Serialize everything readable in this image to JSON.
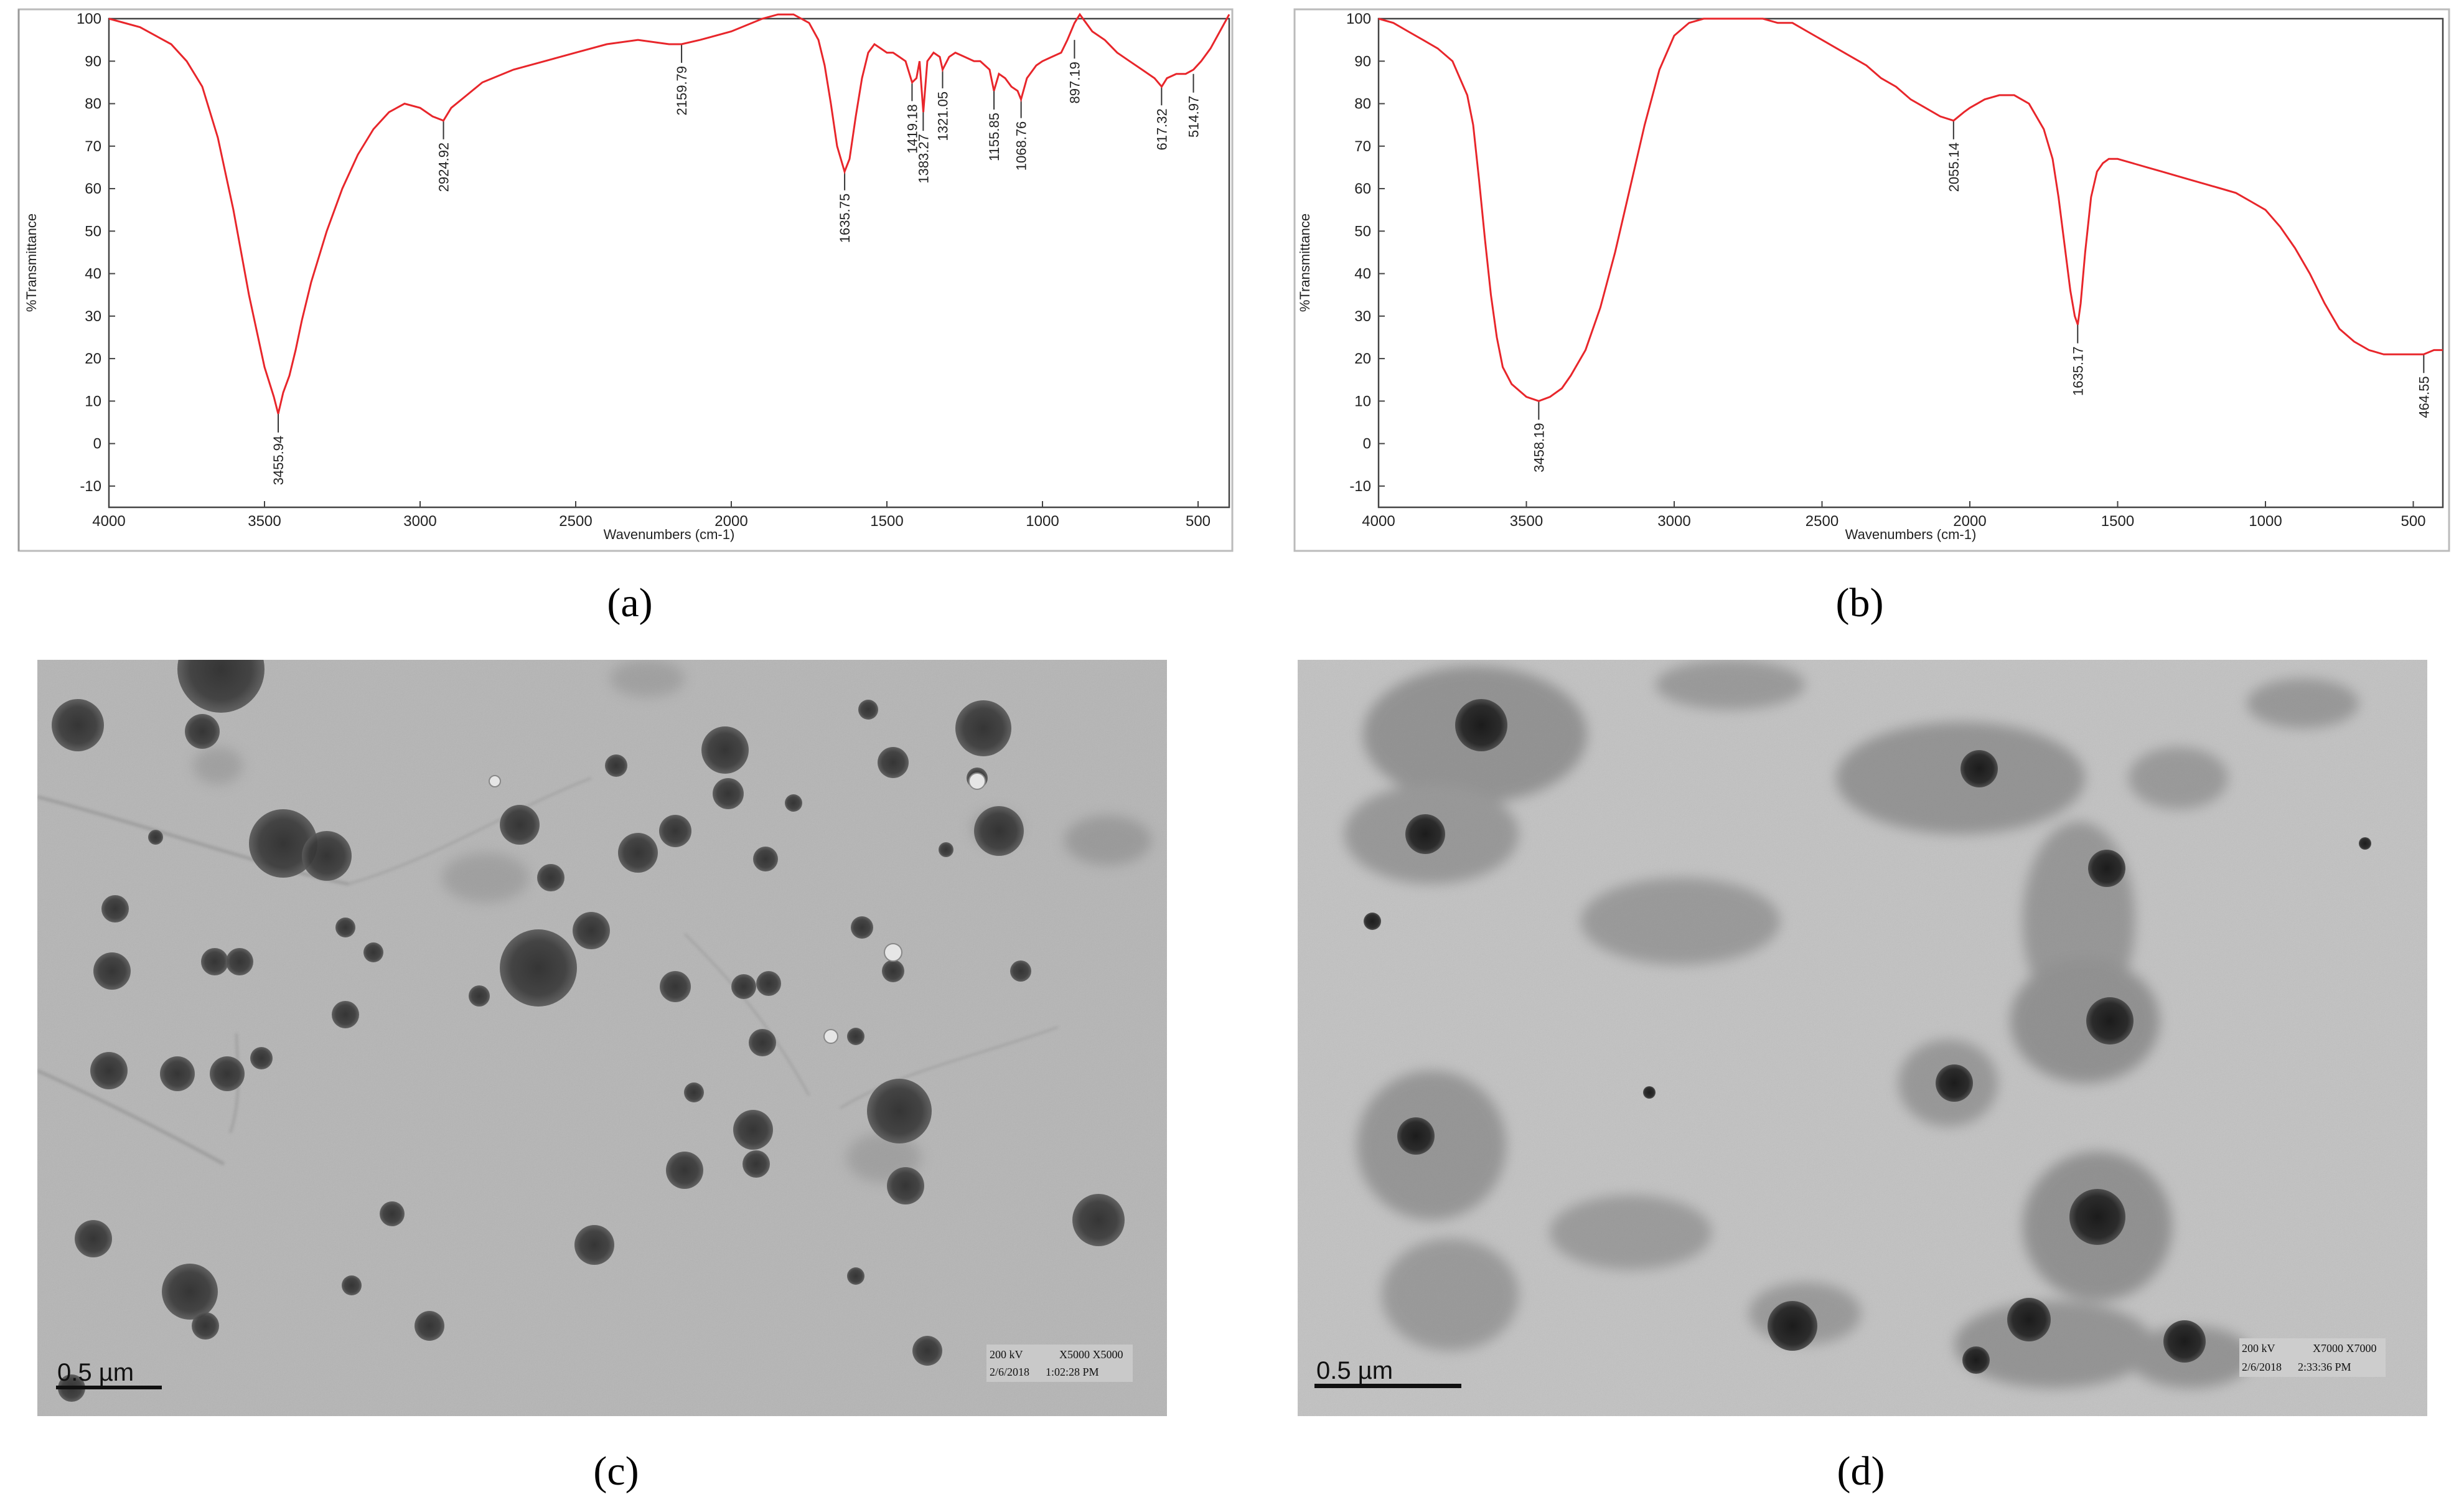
{
  "chart_data": [
    {
      "type": "line",
      "panel": "(a)",
      "xlabel": "Wavenumbers (cm-1)",
      "ylabel": "%Transmittance",
      "xlim": [
        4000,
        400
      ],
      "ylim": [
        -15,
        100
      ],
      "x_ticks": [
        4000,
        3500,
        3000,
        2500,
        2000,
        1500,
        1000,
        500
      ],
      "y_ticks": [
        -10,
        0,
        10,
        20,
        30,
        40,
        50,
        60,
        70,
        80,
        90,
        100
      ],
      "grid": false,
      "color": "#e8262b",
      "series": [
        {
          "x": [
            4000,
            3900,
            3800,
            3750,
            3700,
            3650,
            3600,
            3550,
            3500,
            3470,
            3456,
            3440,
            3420,
            3400,
            3380,
            3350,
            3300,
            3250,
            3200,
            3150,
            3100,
            3050,
            3000,
            2960,
            2925,
            2900,
            2850,
            2800,
            2700,
            2600,
            2500,
            2400,
            2300,
            2200,
            2160,
            2100,
            2000,
            1900,
            1850,
            1800,
            1750,
            1720,
            1700,
            1680,
            1660,
            1636,
            1620,
            1600,
            1580,
            1560,
            1540,
            1520,
            1500,
            1480,
            1460,
            1440,
            1419,
            1405,
            1395,
            1383,
            1370,
            1350,
            1330,
            1321,
            1300,
            1280,
            1250,
            1220,
            1200,
            1170,
            1156,
            1140,
            1120,
            1100,
            1080,
            1069,
            1050,
            1020,
            1000,
            970,
            940,
            920,
            897,
            880,
            860,
            840,
            800,
            760,
            720,
            680,
            640,
            617,
            600,
            570,
            540,
            515,
            490,
            460,
            430,
            400
          ],
          "y": [
            100,
            98,
            94,
            90,
            84,
            72,
            55,
            35,
            18,
            11,
            7,
            12,
            16,
            22,
            29,
            38,
            50,
            60,
            68,
            74,
            78,
            80,
            79,
            77,
            76,
            79,
            82,
            85,
            88,
            90,
            92,
            94,
            95,
            94,
            94,
            95,
            97,
            100,
            101,
            101,
            99,
            95,
            89,
            80,
            70,
            64,
            67,
            77,
            86,
            92,
            94,
            93,
            92,
            92,
            91,
            90,
            85,
            86,
            90,
            78,
            90,
            92,
            91,
            88,
            91,
            92,
            91,
            90,
            90,
            88,
            83,
            87,
            86,
            84,
            83,
            81,
            86,
            89,
            90,
            91,
            92,
            95,
            99,
            101,
            99,
            97,
            95,
            92,
            90,
            88,
            86,
            84,
            86,
            87,
            87,
            88,
            90,
            93,
            97,
            101
          ]
        }
      ],
      "annotations": [
        {
          "x": 3455.94,
          "y": 7,
          "text": "3455.94"
        },
        {
          "x": 2924.92,
          "y": 76,
          "text": "2924.92"
        },
        {
          "x": 2159.79,
          "y": 94,
          "text": "2159.79"
        },
        {
          "x": 1635.75,
          "y": 64,
          "text": "1635.75"
        },
        {
          "x": 1419.18,
          "y": 85,
          "text": "1419.18"
        },
        {
          "x": 1383.27,
          "y": 78,
          "text": "1383.27"
        },
        {
          "x": 1321.05,
          "y": 88,
          "text": "1321.05"
        },
        {
          "x": 1155.85,
          "y": 83,
          "text": "1155.85"
        },
        {
          "x": 1068.76,
          "y": 81,
          "text": "1068.76"
        },
        {
          "x": 897.19,
          "y": 95,
          "text": "897.19"
        },
        {
          "x": 617.32,
          "y": 84,
          "text": "617.32"
        },
        {
          "x": 514.97,
          "y": 87,
          "text": "514.97"
        }
      ]
    },
    {
      "type": "line",
      "panel": "(b)",
      "xlabel": "Wavenumbers (cm-1)",
      "ylabel": "%Transmittance",
      "xlim": [
        4000,
        400
      ],
      "ylim": [
        -15,
        100
      ],
      "x_ticks": [
        4000,
        3500,
        3000,
        2500,
        2000,
        1500,
        1000,
        500
      ],
      "y_ticks": [
        -10,
        0,
        10,
        20,
        30,
        40,
        50,
        60,
        70,
        80,
        90,
        100
      ],
      "grid": false,
      "color": "#e8262b",
      "series": [
        {
          "x": [
            4000,
            3950,
            3900,
            3850,
            3800,
            3750,
            3700,
            3680,
            3660,
            3640,
            3620,
            3600,
            3580,
            3550,
            3500,
            3458,
            3420,
            3380,
            3350,
            3300,
            3250,
            3200,
            3150,
            3100,
            3050,
            3000,
            2950,
            2900,
            2850,
            2800,
            2750,
            2700,
            2650,
            2600,
            2550,
            2500,
            2450,
            2400,
            2350,
            2300,
            2250,
            2200,
            2150,
            2100,
            2055,
            2020,
            2000,
            1950,
            1900,
            1850,
            1800,
            1750,
            1720,
            1700,
            1680,
            1660,
            1645,
            1635,
            1625,
            1610,
            1590,
            1570,
            1550,
            1530,
            1500,
            1450,
            1400,
            1350,
            1300,
            1250,
            1200,
            1150,
            1100,
            1050,
            1000,
            950,
            900,
            850,
            800,
            750,
            700,
            650,
            600,
            550,
            500,
            465,
            430,
            400
          ],
          "y": [
            100,
            99,
            97,
            95,
            93,
            90,
            82,
            75,
            62,
            48,
            35,
            25,
            18,
            14,
            11,
            10,
            11,
            13,
            16,
            22,
            32,
            45,
            60,
            75,
            88,
            96,
            99,
            100,
            100,
            100,
            100,
            100,
            99,
            99,
            97,
            95,
            93,
            91,
            89,
            86,
            84,
            81,
            79,
            77,
            76,
            78,
            79,
            81,
            82,
            82,
            80,
            74,
            67,
            58,
            47,
            36,
            30,
            28,
            33,
            45,
            58,
            64,
            66,
            67,
            67,
            66,
            65,
            64,
            63,
            62,
            61,
            60,
            59,
            57,
            55,
            51,
            46,
            40,
            33,
            27,
            24,
            22,
            21,
            21,
            21,
            21,
            22,
            22
          ]
        }
      ],
      "annotations": [
        {
          "x": 3458.19,
          "y": 10,
          "text": "3458.19"
        },
        {
          "x": 2055.14,
          "y": 76,
          "text": "2055.14"
        },
        {
          "x": 1635.17,
          "y": 28,
          "text": "1635.17"
        },
        {
          "x": 464.55,
          "y": 21,
          "text": "464.55"
        }
      ]
    }
  ],
  "panels": {
    "a": "(a)",
    "b": "(b)",
    "c": "(c)",
    "d": "(d)"
  },
  "tem_c": {
    "scale_bar": "0.5 µm",
    "meta": [
      "200 kV",
      "X5000 X5000",
      "2/6/2018",
      "1:02:28 PM"
    ]
  },
  "tem_d": {
    "scale_bar": "0.5 µm",
    "meta": [
      "200 kV",
      "X7000 X7000",
      "2/6/2018",
      "2:33:36 PM"
    ]
  }
}
